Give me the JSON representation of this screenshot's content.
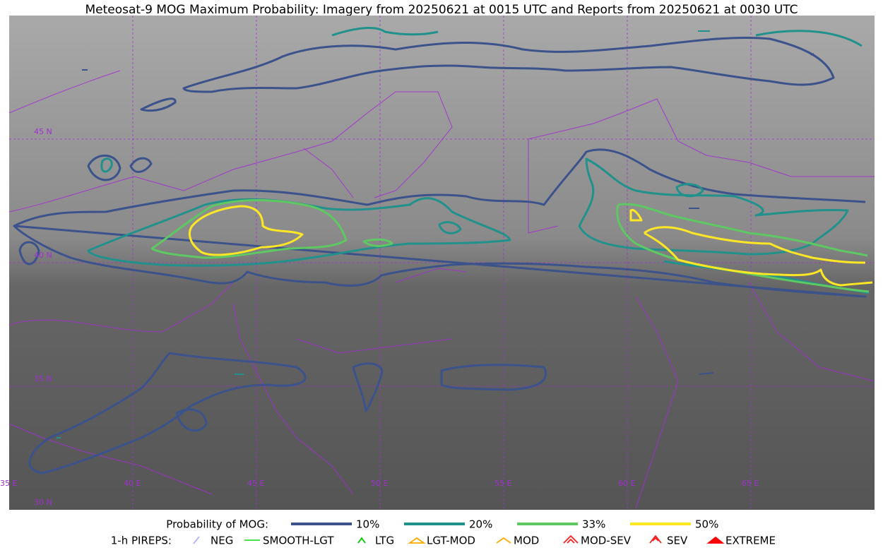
{
  "title": "Meteosat-9 MOG Maximum Probability: Imagery from 20250621 at 0015 UTC and Reports from 20250621 at 0030 UTC",
  "map": {
    "lat_labels": [
      "45 N",
      "40 N",
      "35 N",
      "30 N"
    ],
    "lon_labels": [
      "35 E",
      "40 E",
      "45 E",
      "50 E",
      "55 E",
      "60 E",
      "65 E"
    ]
  },
  "legend": {
    "probability": {
      "label": "Probability of MOG:",
      "items": [
        {
          "label": "10%",
          "color": "#3b528b"
        },
        {
          "label": "20%",
          "color": "#21918c"
        },
        {
          "label": "33%",
          "color": "#5ec962"
        },
        {
          "label": "50%",
          "color": "#fde725"
        }
      ]
    },
    "pireps": {
      "label": "1-h PIREPS:",
      "items": [
        {
          "label": "NEG",
          "color": "#b0b0ff"
        },
        {
          "label": "SMOOTH-LGT",
          "color": "#33dd33"
        },
        {
          "label": "LTG",
          "color": "#00cc00"
        },
        {
          "label": "LGT-MOD",
          "color": "#ffaa00"
        },
        {
          "label": "MOD",
          "color": "#ffaa00"
        },
        {
          "label": "MOD-SEV",
          "color": "#ff2020"
        },
        {
          "label": "SEV",
          "color": "#ff2020"
        },
        {
          "label": "EXTREME",
          "color": "#ff0000"
        }
      ]
    }
  }
}
